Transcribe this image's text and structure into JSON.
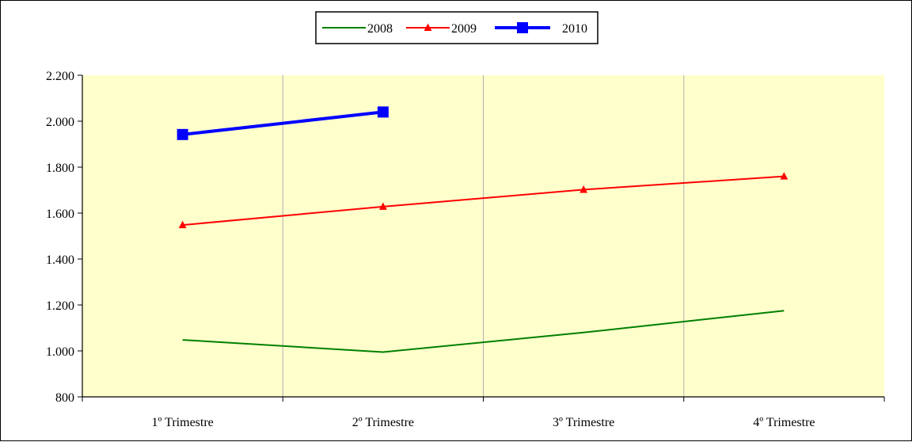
{
  "chart_data": {
    "type": "line",
    "title": "",
    "xlabel": "",
    "ylabel": "",
    "categories": [
      "1º Trimestre",
      "2º Trimestre",
      "3º Trimestre",
      "4º Trimestre"
    ],
    "ylim": [
      800,
      2200
    ],
    "yticks": [
      800,
      1000,
      1200,
      1400,
      1600,
      1800,
      2000,
      2200
    ],
    "ytick_labels": [
      "800",
      "1.000",
      "1.200",
      "1.400",
      "1.600",
      "1.800",
      "2.000",
      "2.200"
    ],
    "grid": "vertical",
    "plot_background": "#ffffcc",
    "legend_position": "top-center",
    "series": [
      {
        "name": "2008",
        "color": "#008000",
        "marker": "none",
        "values": [
          1048,
          995,
          1080,
          1175
        ]
      },
      {
        "name": "2009",
        "color": "#ff0000",
        "marker": "triangle",
        "values": [
          1548,
          1628,
          1702,
          1760
        ]
      },
      {
        "name": "2010",
        "color": "#0000ff",
        "marker": "square",
        "values": [
          1942,
          2040,
          null,
          null
        ]
      }
    ]
  }
}
